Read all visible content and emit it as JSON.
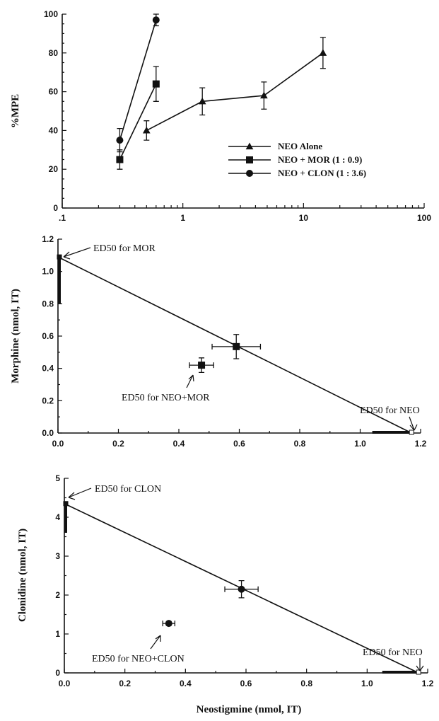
{
  "chart_data": [
    {
      "type": "line",
      "xscale": "log",
      "xlim": [
        0.1,
        100
      ],
      "ylim": [
        0,
        100
      ],
      "xticklabels": [
        ".1",
        "1",
        "10",
        "100"
      ],
      "yticks": [
        0,
        20,
        40,
        60,
        80,
        100
      ],
      "ylabel": "%MPE",
      "legend_position": "center-right",
      "series": [
        {
          "name": "NEO Alone",
          "marker": "triangle",
          "x": [
            0.5,
            1.45,
            4.7,
            14.5
          ],
          "y": [
            40,
            55,
            58,
            80
          ],
          "err": [
            5,
            7,
            7,
            8
          ]
        },
        {
          "name": "NEO + MOR (1 : 0.9)",
          "marker": "square",
          "x": [
            0.3,
            0.6
          ],
          "y": [
            25,
            64
          ],
          "err": [
            5,
            9
          ]
        },
        {
          "name": "NEO + CLON (1 : 3.6)",
          "marker": "circle",
          "x": [
            0.3,
            0.6
          ],
          "y": [
            35,
            97
          ],
          "err": [
            6,
            3
          ]
        }
      ]
    },
    {
      "type": "scatter",
      "xlim": [
        0,
        1.2
      ],
      "ylim": [
        0,
        1.2
      ],
      "xticks": [
        0.0,
        0.2,
        0.4,
        0.6,
        0.8,
        1.0,
        1.2
      ],
      "xticklabels": [
        "0.0",
        "0.2",
        "0.4",
        "0.6",
        "0.8",
        "1.0",
        "1.2"
      ],
      "yticks": [
        0.0,
        0.2,
        0.4,
        0.6,
        0.8,
        1.0,
        1.2
      ],
      "yticklabels": [
        "0.0",
        "0.2",
        "0.4",
        "0.6",
        "0.8",
        "1.0",
        "1.2"
      ],
      "ylabel": "Morphine (nmol, IT)",
      "additivity_line": {
        "from": [
          0,
          1.09
        ],
        "to": [
          1.17,
          0
        ]
      },
      "points": [
        {
          "x": 0.59,
          "y": 0.535,
          "xerr": 0.08,
          "yerr": 0.075
        },
        {
          "x": 0.475,
          "y": 0.42,
          "xerr": 0.04,
          "yerr": 0.045
        }
      ],
      "ed50_bars": [
        {
          "axis": "y",
          "value": 1.09,
          "lo": 0.8,
          "hi": 1.09
        },
        {
          "axis": "x",
          "value": 1.17,
          "lo": 1.04,
          "hi": 1.17
        }
      ],
      "annotations": [
        "ED50 for MOR",
        "ED50 for NEO+MOR",
        "ED50 for NEO"
      ]
    },
    {
      "type": "scatter",
      "xlim": [
        0,
        1.2
      ],
      "ylim": [
        0,
        5
      ],
      "xticks": [
        0.0,
        0.2,
        0.4,
        0.6,
        0.8,
        1.0,
        1.2
      ],
      "xticklabels": [
        "0.0",
        "0.2",
        "0.4",
        "0.6",
        "0.8",
        "1.0",
        "1.2"
      ],
      "yticks": [
        0,
        1,
        2,
        3,
        4,
        5
      ],
      "yticklabels": [
        "0",
        "1",
        "2",
        "3",
        "4",
        "5"
      ],
      "ylabel": "Clonidine (nmol, IT)",
      "xlabel": "Neostigmine (nmol, IT)",
      "additivity_line": {
        "from": [
          0,
          4.35
        ],
        "to": [
          1.17,
          0
        ]
      },
      "points": [
        {
          "x": 0.585,
          "y": 2.15,
          "xerr": 0.055,
          "yerr": 0.22
        },
        {
          "x": 0.345,
          "y": 1.27,
          "xerr": 0.02,
          "yerr": 0.05
        }
      ],
      "ed50_bars": [
        {
          "axis": "y",
          "value": 4.35,
          "lo": 3.6,
          "hi": 4.35
        },
        {
          "axis": "x",
          "value": 1.17,
          "lo": 1.05,
          "hi": 1.17
        }
      ],
      "annotations": [
        "ED50 for CLON",
        "ED50 for NEO+CLON",
        "ED50 for NEO"
      ]
    }
  ]
}
